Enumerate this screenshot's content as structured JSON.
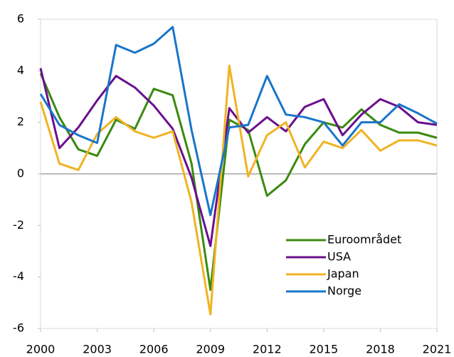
{
  "chart_data": {
    "type": "line",
    "x": [
      2000,
      2001,
      2002,
      2003,
      2004,
      2005,
      2006,
      2007,
      2008,
      2009,
      2010,
      2011,
      2012,
      2013,
      2014,
      2015,
      2016,
      2017,
      2018,
      2019,
      2020,
      2021
    ],
    "series": [
      {
        "name": "Euroområdet",
        "color": "#3a8a0f",
        "values": [
          3.9,
          2.2,
          0.95,
          0.7,
          2.1,
          1.75,
          3.3,
          3.05,
          0.4,
          -4.5,
          2.1,
          1.7,
          -0.85,
          -0.25,
          1.15,
          2.0,
          1.8,
          2.5,
          1.9,
          1.6,
          1.6,
          1.4
        ]
      },
      {
        "name": "USA",
        "color": "#6a0f8e",
        "values": [
          4.1,
          1.0,
          1.8,
          2.85,
          3.8,
          3.35,
          2.65,
          1.75,
          -0.15,
          -2.8,
          2.55,
          1.6,
          2.2,
          1.65,
          2.6,
          2.9,
          1.5,
          2.3,
          2.9,
          2.6,
          2.0,
          1.9
        ]
      },
      {
        "name": "Japan",
        "color": "#f0b323",
        "values": [
          2.8,
          0.4,
          0.15,
          1.55,
          2.2,
          1.65,
          1.4,
          1.65,
          -1.1,
          -5.45,
          4.2,
          -0.1,
          1.5,
          2.0,
          0.25,
          1.25,
          1.0,
          1.7,
          0.9,
          1.3,
          1.3,
          1.1
        ]
      },
      {
        "name": "Norge",
        "color": "#1a75c9",
        "values": [
          3.1,
          1.9,
          1.5,
          1.2,
          5.0,
          4.7,
          5.05,
          5.7,
          1.7,
          -1.6,
          1.8,
          1.9,
          3.8,
          2.3,
          2.2,
          2.0,
          1.1,
          2.0,
          2.0,
          2.7,
          2.35,
          1.95
        ]
      }
    ],
    "xlim": [
      2000,
      2021
    ],
    "xticks": [
      2000,
      2003,
      2006,
      2009,
      2012,
      2015,
      2018,
      2021
    ],
    "ylim": [
      -6,
      6
    ],
    "yticks": [
      -6,
      -4,
      -2,
      0,
      2,
      4,
      6
    ],
    "legend": "lower right"
  }
}
